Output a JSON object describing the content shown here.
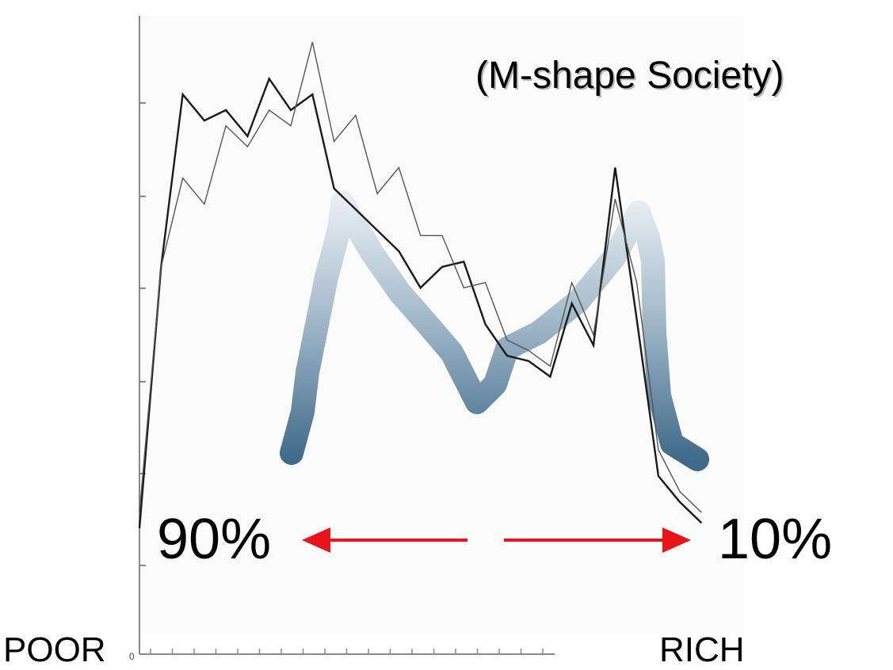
{
  "title": "(M-shape Society)",
  "left_percent": "90%",
  "right_percent": "10%",
  "poor_label": "POOR",
  "rich_label": "RICH",
  "zero_tick": "0",
  "colors": {
    "series_dark": "#1a1a1a",
    "series_light": "#555555",
    "arrow": "#e8141a",
    "m_stroke_top": "#e6edf2",
    "m_stroke_bottom": "#406a8a",
    "axis": "#8a8a8a"
  },
  "chart_data": {
    "type": "line",
    "title": "(M-shape Society)",
    "xlabel": "",
    "ylabel": "",
    "grid": false,
    "xlim": [
      0,
      28
    ],
    "ylim": [
      0,
      100
    ],
    "x_left_label": "POOR",
    "x_right_label": "RICH",
    "series": [
      {
        "style": "dark",
        "x": [
          0,
          1,
          2,
          3,
          4,
          5,
          6,
          7,
          8,
          9,
          10,
          11,
          12,
          13,
          14,
          15,
          16,
          17,
          18,
          19,
          20,
          21,
          22,
          23,
          24,
          25,
          26
        ],
        "y": [
          5,
          55,
          88,
          83,
          85,
          80,
          91,
          85,
          88,
          70,
          66,
          62,
          58,
          51,
          55,
          56,
          44,
          38,
          37,
          34,
          48,
          40,
          74,
          45,
          15,
          10,
          6
        ]
      },
      {
        "style": "light",
        "x": [
          0,
          1,
          2,
          3,
          4,
          5,
          6,
          7,
          8,
          9,
          10,
          11,
          12,
          13,
          14,
          15,
          16,
          17,
          18,
          19,
          20,
          21,
          22,
          23,
          24,
          25,
          26
        ],
        "y": [
          8,
          55,
          72,
          67,
          82,
          78,
          85,
          82,
          98,
          79,
          84,
          69,
          74,
          61,
          61,
          51,
          52,
          41,
          39,
          36,
          52,
          42,
          68,
          52,
          20,
          12,
          8
        ]
      }
    ],
    "annotation_shape": "M",
    "arrows": [
      {
        "direction": "left",
        "label": "90%"
      },
      {
        "direction": "right",
        "label": "10%"
      }
    ]
  }
}
